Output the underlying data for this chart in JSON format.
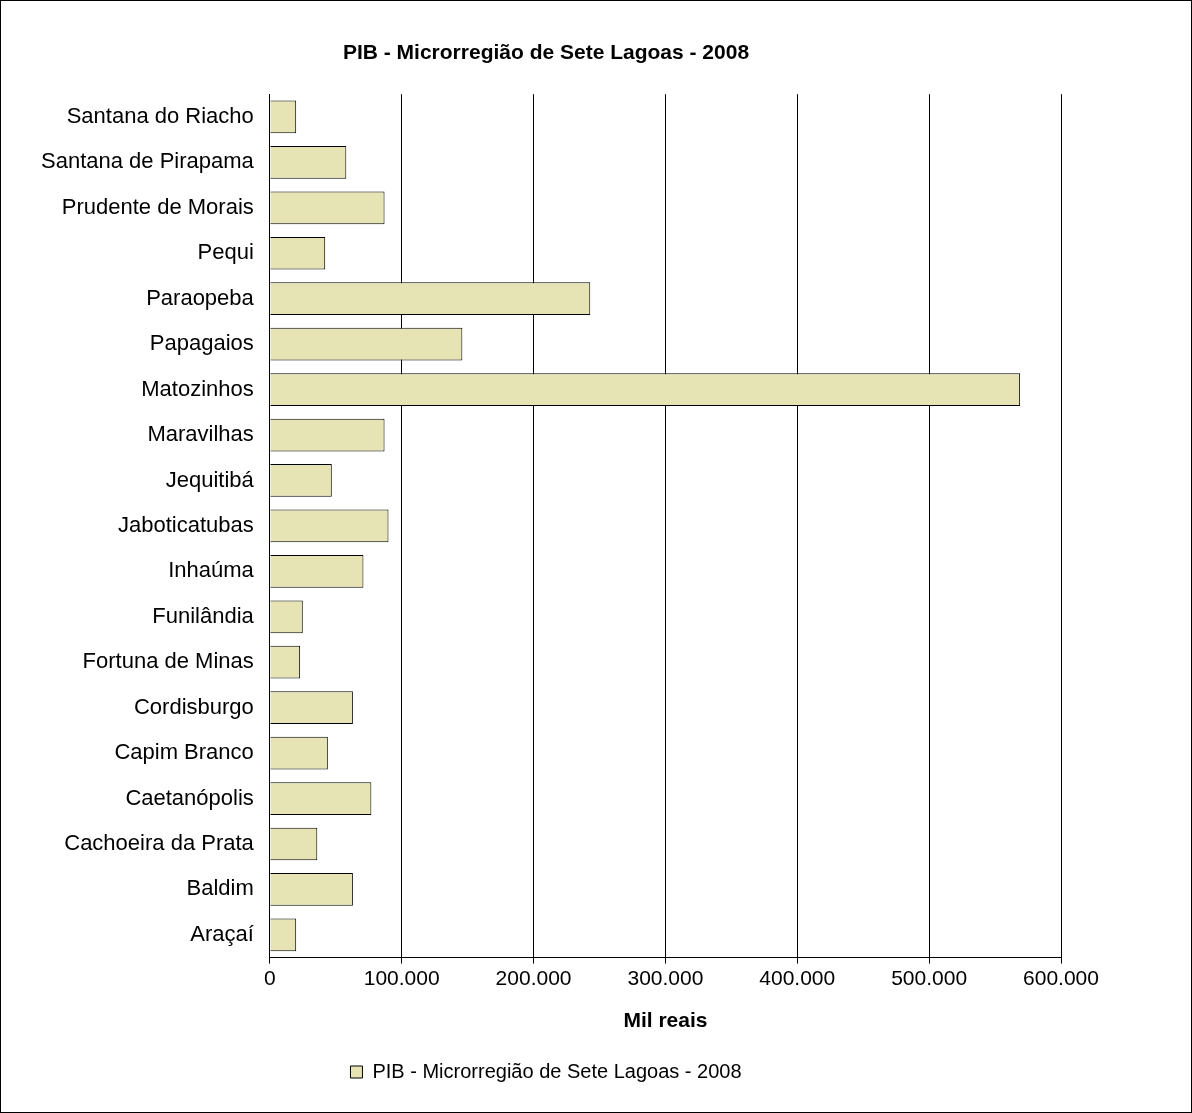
{
  "chart_data": {
    "type": "bar",
    "orientation": "horizontal",
    "title": "PIB - Microrregião de Sete Lagoas - 2008",
    "xlabel": "Mil reais",
    "categories": [
      "Santana do Riacho",
      "Santana de Pirapama",
      "Prudente de Morais",
      "Pequi",
      "Paraopeba",
      "Papagaios",
      "Matozinhos",
      "Maravilhas",
      "Jequitibá",
      "Jaboticatubas",
      "Inhaúma",
      "Funilândia",
      "Fortuna de Minas",
      "Cordisburgo",
      "Capim Branco",
      "Caetanópolis",
      "Cachoeira da Prata",
      "Baldim",
      "Araçaí"
    ],
    "series": [
      {
        "name": "PIB - Microrregião de Sete Lagoas - 2008",
        "color": "#e6e4b4",
        "values": [
          20000,
          58000,
          87000,
          42000,
          243000,
          146000,
          569000,
          87000,
          47000,
          90000,
          71000,
          25000,
          23000,
          63000,
          44000,
          77000,
          36000,
          63000,
          20000
        ]
      }
    ],
    "xlim": [
      0,
      600000
    ],
    "xticks": [
      0,
      {
        "value": 100000,
        "label": "100.000"
      },
      {
        "value": 200000,
        "label": "200.000"
      },
      {
        "value": 300000,
        "label": "300.000"
      },
      {
        "value": 400000,
        "label": "400.000"
      },
      {
        "value": 500000,
        "label": "500.000"
      },
      {
        "value": 600000,
        "label": "600.000"
      }
    ],
    "grid": "x",
    "legend": "bottom"
  }
}
